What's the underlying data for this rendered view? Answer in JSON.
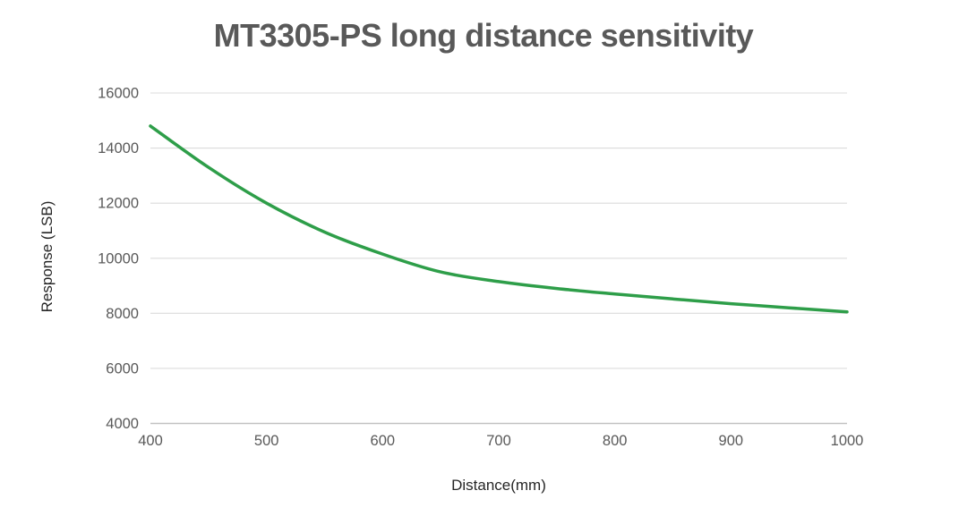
{
  "chart_data": {
    "type": "line",
    "title": "MT3305-PS long distance sensitivity",
    "xlabel": "Distance(mm)",
    "ylabel": "Response (LSB)",
    "x": [
      400,
      450,
      500,
      550,
      600,
      650,
      700,
      750,
      800,
      850,
      900,
      950,
      1000
    ],
    "y": [
      14800,
      13300,
      12000,
      10950,
      10150,
      9500,
      9150,
      8900,
      8700,
      8520,
      8350,
      8200,
      8050
    ],
    "xlim": [
      400,
      1000
    ],
    "ylim": [
      4000,
      16000
    ],
    "x_ticks": [
      400,
      500,
      600,
      700,
      800,
      900,
      1000
    ],
    "y_ticks": [
      4000,
      6000,
      8000,
      10000,
      12000,
      14000,
      16000
    ],
    "grid": "horizontal-only",
    "legend": "none",
    "markers": "none",
    "colors": {
      "line": "#2e9e49",
      "gridline": "#dcdcdc",
      "axis_line": "#c2c2c2",
      "tick_label": "#595959",
      "title": "#595959",
      "axis_title": "#262626",
      "background": "#ffffff"
    }
  }
}
